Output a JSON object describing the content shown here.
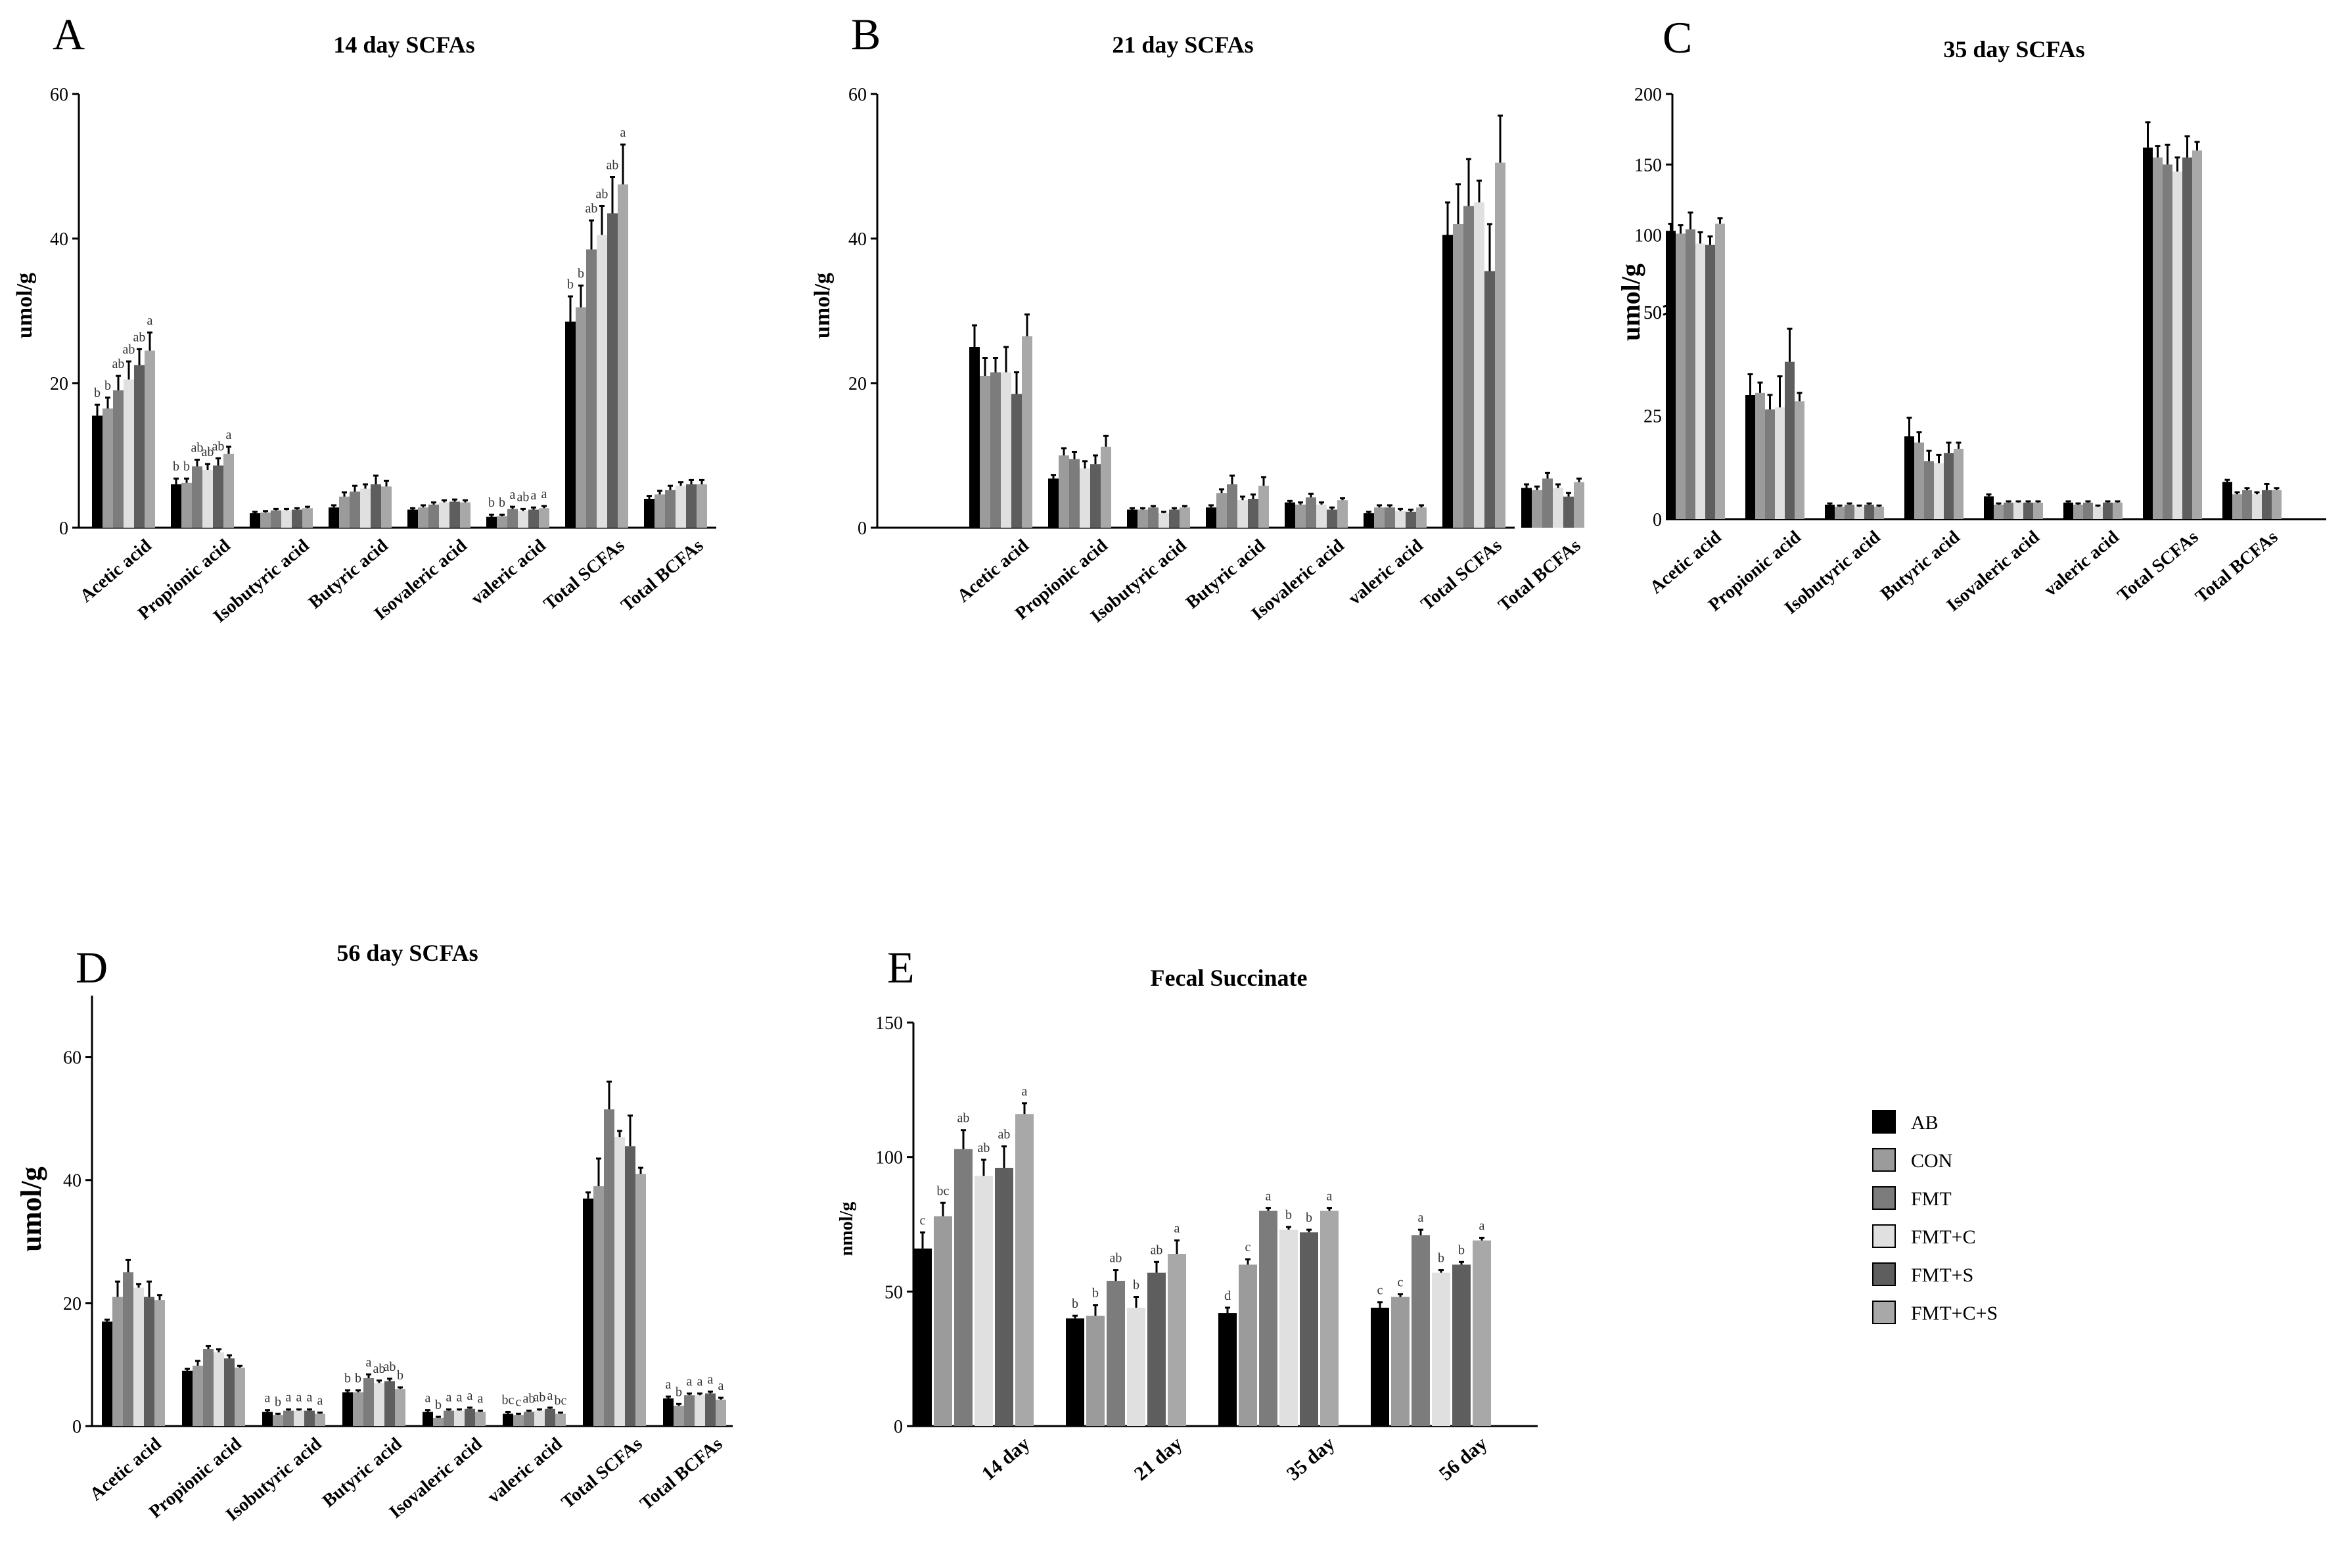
{
  "legend": {
    "labels": [
      "AB",
      "CON",
      "FMT",
      "FMT+C",
      "FMT+S",
      "FMT+C+S"
    ],
    "colors": [
      "#000000",
      "#9b9b9b",
      "#7c7c7c",
      "#e0e0e0",
      "#5e5e5e",
      "#a8a8a8"
    ]
  },
  "chart_data": [
    {
      "panel": "A",
      "type": "bar",
      "title": "14 day SCFAs",
      "ylabel": "umol/g",
      "ylim": [
        0,
        60
      ],
      "yticks": [
        0,
        20,
        40,
        60
      ],
      "categories": [
        "Acetic acid",
        "Propionic acid",
        "Isobutyric acid",
        "Butyric acid",
        "Isovaleric acid",
        "valeric acid",
        "Total SCFAs",
        "Total BCFAs"
      ],
      "series": [
        {
          "name": "AB",
          "values": [
            15.5,
            6,
            2,
            2.8,
            2.5,
            1.5,
            28.5,
            4
          ],
          "errors": [
            1.5,
            0.8,
            0.2,
            0.3,
            0.2,
            0.3,
            3.5,
            0.4
          ]
        },
        {
          "name": "CON",
          "values": [
            16.5,
            6.2,
            2.1,
            4.3,
            2.8,
            1.6,
            30.5,
            4.6
          ],
          "errors": [
            1.5,
            0.6,
            0.2,
            0.6,
            0.3,
            0.2,
            3,
            0.5
          ]
        },
        {
          "name": "FMT",
          "values": [
            19,
            8.5,
            2.4,
            5,
            3.2,
            2.6,
            38.5,
            5.2
          ],
          "errors": [
            2,
            0.9,
            0.2,
            0.8,
            0.3,
            0.3,
            4,
            0.6
          ]
        },
        {
          "name": "FMT+C",
          "values": [
            20.5,
            8,
            2.4,
            5.4,
            3.5,
            2.3,
            40.5,
            5.8
          ],
          "errors": [
            2.5,
            0.8,
            0.2,
            0.6,
            0.3,
            0.3,
            4,
            0.5
          ]
        },
        {
          "name": "FMT+S",
          "values": [
            22.5,
            8.6,
            2.5,
            6,
            3.6,
            2.5,
            43.5,
            6
          ],
          "errors": [
            2.2,
            1,
            0.2,
            1.2,
            0.3,
            0.3,
            5,
            0.6
          ]
        },
        {
          "name": "FMT+C+S",
          "values": [
            24.5,
            10.2,
            2.7,
            5.7,
            3.5,
            2.7,
            47.5,
            6
          ],
          "errors": [
            2.5,
            1,
            0.2,
            0.8,
            0.3,
            0.3,
            5.5,
            0.6
          ]
        }
      ],
      "sig_labels": [
        [
          "b",
          "b",
          "ab",
          "ab",
          "ab",
          "a"
        ],
        [
          "b",
          "b",
          "ab",
          "ab",
          "ab",
          "a"
        ],
        [],
        [],
        [],
        [
          "b",
          "b",
          "a",
          "ab",
          "a",
          "a"
        ],
        [
          "b",
          "b",
          "ab",
          "ab",
          "ab",
          "a"
        ],
        []
      ]
    },
    {
      "panel": "B",
      "type": "bar",
      "title": "21 day SCFAs",
      "ylabel": "umol/g",
      "ylim": [
        0,
        60
      ],
      "yticks": [
        0,
        20,
        40,
        60
      ],
      "categories": [
        "Acetic acid",
        "Propionic acid",
        "Isobutyric acid",
        "Butyric acid",
        "Isovaleric acid",
        "valeric acid",
        "Total SCFAs",
        "Total BCFAs"
      ],
      "series": [
        {
          "name": "AB",
          "values": [
            25,
            6.8,
            2.5,
            2.8,
            3.5,
            2,
            40.5,
            5.5
          ],
          "errors": [
            3,
            0.5,
            0.2,
            0.3,
            0.2,
            0.2,
            4.5,
            0.5
          ]
        },
        {
          "name": "CON",
          "values": [
            21,
            10,
            2.5,
            4.8,
            3.2,
            2.8,
            42,
            5.2
          ],
          "errors": [
            2.5,
            1,
            0.2,
            0.5,
            0.3,
            0.3,
            5.5,
            0.5
          ]
        },
        {
          "name": "FMT",
          "values": [
            21.5,
            9.5,
            2.8,
            6,
            4.2,
            2.8,
            44.5,
            6.8
          ],
          "errors": [
            2,
            1,
            0.2,
            1.2,
            0.5,
            0.3,
            6.5,
            0.8
          ]
        },
        {
          "name": "FMT+C",
          "values": [
            21.5,
            8.2,
            2,
            3.8,
            3.2,
            2.3,
            45,
            5.5
          ],
          "errors": [
            3.5,
            1,
            0.2,
            0.5,
            0.3,
            0.3,
            3,
            0.5
          ]
        },
        {
          "name": "FMT+S",
          "values": [
            18.5,
            8.8,
            2.5,
            4,
            2.5,
            2.2,
            35.5,
            4.3
          ],
          "errors": [
            3,
            1.2,
            0.2,
            0.6,
            0.3,
            0.3,
            6.5,
            0.5
          ]
        },
        {
          "name": "FMT+C+S",
          "values": [
            26.5,
            11.2,
            2.8,
            5.8,
            3.8,
            2.8,
            50.5,
            6.3
          ],
          "errors": [
            3,
            1.5,
            0.2,
            1.2,
            0.3,
            0.3,
            6.5,
            0.5
          ]
        }
      ]
    },
    {
      "panel": "C",
      "type": "bar",
      "title": "35 day SCFAs",
      "ylabel": "umol/g",
      "y_break": {
        "lower": [
          0,
          50
        ],
        "upper": [
          50,
          200
        ]
      },
      "yticks_lower": [
        0,
        25,
        50
      ],
      "yticks_upper": [
        50,
        100,
        150,
        200
      ],
      "categories": [
        "Acetic acid",
        "Propionic acid",
        "Isobutyric acid",
        "Butyric acid",
        "Isovaleric acid",
        "valeric acid",
        "Total SCFAs",
        "Total BCFAs"
      ],
      "series": [
        {
          "name": "AB",
          "values": [
            103,
            30,
            3.5,
            20,
            5.5,
            4,
            162,
            9
          ],
          "errors": [
            5,
            5,
            0.3,
            4.5,
            0.5,
            0.3,
            18,
            0.5
          ]
        },
        {
          "name": "CON",
          "values": [
            101,
            30.5,
            3,
            18.5,
            3.5,
            3.5,
            155,
            6
          ],
          "errors": [
            6,
            2.5,
            0.3,
            2.5,
            0.3,
            0.3,
            8,
            0.5
          ]
        },
        {
          "name": "FMT",
          "values": [
            104,
            26.5,
            3.5,
            14,
            4,
            4,
            150,
            7
          ],
          "errors": [
            12,
            3.5,
            0.3,
            2.5,
            0.3,
            0.3,
            14,
            0.5
          ]
        },
        {
          "name": "FMT+C",
          "values": [
            94,
            27,
            3,
            13.5,
            4,
            3,
            145,
            6
          ],
          "errors": [
            8,
            7.5,
            0.3,
            2,
            0.3,
            0.3,
            10,
            0.5
          ]
        },
        {
          "name": "FMT+S",
          "values": [
            93,
            38,
            3.5,
            16,
            4,
            4,
            155,
            7
          ],
          "errors": [
            6,
            8,
            0.3,
            2.5,
            0.3,
            0.3,
            15,
            1.5
          ]
        },
        {
          "name": "FMT+C+S",
          "values": [
            108,
            28.5,
            3,
            17,
            4,
            4,
            160,
            7
          ],
          "errors": [
            4,
            2,
            0.3,
            1.5,
            0.3,
            0.3,
            6,
            0.5
          ]
        }
      ]
    },
    {
      "panel": "D",
      "type": "bar",
      "title": "56 day SCFAs",
      "ylabel": "umol/g",
      "ylim": [
        0,
        70
      ],
      "yticks": [
        0,
        20,
        40,
        60
      ],
      "categories": [
        "Acetic acid",
        "Propionic acid",
        "Isobutyric acid",
        "Butyric acid",
        "Isovaleric acid",
        "valeric acid",
        "Total SCFAs",
        "Total BCFAs"
      ],
      "series": [
        {
          "name": "AB",
          "values": [
            17,
            9,
            2.3,
            5.5,
            2.3,
            2,
            37,
            4.5
          ],
          "errors": [
            0.3,
            0.3,
            0.3,
            0.3,
            0.3,
            0.3,
            1,
            0.3
          ]
        },
        {
          "name": "CON",
          "values": [
            21,
            9.8,
            1.8,
            5.5,
            1.3,
            1.8,
            39,
            3.3
          ],
          "errors": [
            2.5,
            0.8,
            0.2,
            0.3,
            0.2,
            0.2,
            4.5,
            0.3
          ]
        },
        {
          "name": "FMT",
          "values": [
            25,
            12.5,
            2.5,
            7.8,
            2.5,
            2.3,
            51.5,
            5
          ],
          "errors": [
            2,
            0.5,
            0.2,
            0.6,
            0.2,
            0.2,
            4.5,
            0.3
          ]
        },
        {
          "name": "FMT+C",
          "values": [
            22.5,
            12,
            2.5,
            7,
            2.5,
            2.5,
            47,
            5
          ],
          "errors": [
            0.6,
            0.5,
            0.2,
            0.4,
            0.2,
            0.2,
            1,
            0.3
          ]
        },
        {
          "name": "FMT+S",
          "values": [
            21,
            11,
            2.5,
            7.3,
            2.8,
            2.8,
            45.5,
            5.3
          ],
          "errors": [
            2.5,
            0.5,
            0.2,
            0.4,
            0.2,
            0.2,
            5,
            0.3
          ]
        },
        {
          "name": "FMT+C+S",
          "values": [
            20.5,
            9.5,
            2,
            6,
            2.3,
            2,
            41,
            4.3
          ],
          "errors": [
            0.8,
            0.3,
            0.2,
            0.3,
            0.2,
            0.2,
            1,
            0.3
          ]
        }
      ],
      "sig_labels": [
        [],
        [],
        [
          "a",
          "b",
          "a",
          "a",
          "a",
          "a"
        ],
        [
          "b",
          "b",
          "a",
          "ab",
          "ab",
          "b"
        ],
        [
          "a",
          "b",
          "a",
          "a",
          "a",
          "a"
        ],
        [
          "bc",
          "c",
          "ab",
          "ab",
          "a",
          "bc"
        ],
        [],
        [
          "a",
          "b",
          "a",
          "a",
          "a",
          "a"
        ]
      ]
    },
    {
      "panel": "E",
      "type": "bar",
      "title": "Fecal Succinate",
      "ylabel": "nmol/g",
      "ylim": [
        0,
        150
      ],
      "yticks": [
        0,
        50,
        100,
        150
      ],
      "categories": [
        "14 day",
        "21 day",
        "35 day",
        "56 day"
      ],
      "series": [
        {
          "name": "AB",
          "values": [
            66,
            40,
            42,
            44
          ],
          "errors": [
            6,
            1,
            2,
            2
          ]
        },
        {
          "name": "CON",
          "values": [
            78,
            41,
            60,
            48
          ],
          "errors": [
            5,
            4,
            2,
            1
          ]
        },
        {
          "name": "FMT",
          "values": [
            103,
            54,
            80,
            71
          ],
          "errors": [
            7,
            4,
            1,
            2
          ]
        },
        {
          "name": "FMT+C",
          "values": [
            93,
            44,
            73,
            57
          ],
          "errors": [
            6,
            4,
            1,
            1
          ]
        },
        {
          "name": "FMT+S",
          "values": [
            96,
            57,
            72,
            60
          ],
          "errors": [
            8,
            4,
            1,
            1
          ]
        },
        {
          "name": "FMT+C+S",
          "values": [
            116,
            64,
            80,
            69
          ],
          "errors": [
            4,
            5,
            1,
            1
          ]
        }
      ],
      "sig_labels": [
        [
          "c",
          "bc",
          "ab",
          "ab",
          "ab",
          "a"
        ],
        [
          "b",
          "b",
          "ab",
          "b",
          "ab",
          "a"
        ],
        [
          "d",
          "c",
          "a",
          "b",
          "b",
          "a"
        ],
        [
          "c",
          "c",
          "a",
          "b",
          "b",
          "a"
        ]
      ]
    }
  ]
}
